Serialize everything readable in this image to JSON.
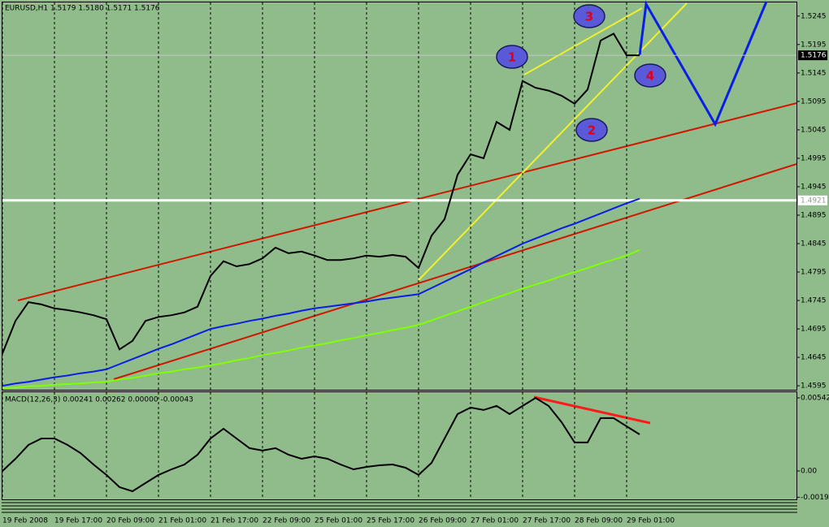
{
  "chart_data": [
    {
      "type": "line",
      "title": "EURUSD,H1  1.5179 1.5180 1.5171 1.5176",
      "categories": [
        "19 Feb 2008",
        null,
        null,
        null,
        "19 Feb 17:00",
        null,
        null,
        null,
        "20 Feb 09:00",
        null,
        null,
        null,
        "21 Feb 01:00",
        null,
        null,
        null,
        "21 Feb 17:00",
        null,
        null,
        null,
        "22 Feb 09:00",
        null,
        null,
        null,
        "25 Feb 01:00",
        null,
        null,
        null,
        "25 Feb 17:00",
        null,
        null,
        null,
        "26 Feb 09:00",
        null,
        null,
        null,
        "27 Feb 01:00",
        null,
        null,
        null,
        "27 Feb 17:00",
        null,
        null,
        null,
        "28 Feb 09:00",
        null,
        null,
        null,
        "29 Feb 01:00",
        null
      ],
      "series": [
        {
          "color": "#000000",
          "values": [
            1.4652,
            1.4709,
            1.4742,
            1.4738,
            1.4731,
            1.4728,
            1.4724,
            1.4719,
            1.4712,
            1.4659,
            1.4674,
            1.4709,
            1.4716,
            1.4719,
            1.4724,
            1.4734,
            1.4788,
            1.4814,
            1.4805,
            1.4809,
            1.4819,
            1.4838,
            1.4828,
            1.4831,
            1.4824,
            1.4816,
            1.4816,
            1.4819,
            1.4824,
            1.4822,
            1.4825,
            1.4822,
            1.4802,
            1.4859,
            1.4888,
            1.4966,
            1.5002,
            1.4995,
            1.5059,
            1.5045,
            1.5131,
            1.5119,
            1.5114,
            1.5105,
            1.5091,
            1.5116,
            1.5202,
            1.5214,
            1.5176,
            1.5176
          ]
        },
        {
          "color": "#0a1ee6",
          "values": [
            1.4595,
            1.4599,
            1.4602,
            1.4606,
            1.461,
            1.4613,
            1.4617,
            1.462,
            1.4624,
            1.4633,
            1.4642,
            1.4651,
            1.466,
            1.4668,
            1.4677,
            1.4686,
            1.4695,
            1.47,
            1.4704,
            1.4709,
            1.4713,
            1.4718,
            1.4722,
            1.4727,
            1.4731,
            1.4734,
            1.4737,
            1.474,
            1.4743,
            1.4747,
            1.475,
            1.4753,
            1.4756,
            1.4767,
            1.4778,
            1.4789,
            1.48,
            1.4812,
            1.4823,
            1.4834,
            1.4845,
            1.4854,
            1.4863,
            1.4872,
            1.488,
            1.4889,
            1.4898,
            1.4907,
            1.4916,
            1.4924
          ]
        },
        {
          "color": "#7fff00",
          "values": [
            1.4591,
            1.4592,
            1.4594,
            1.4595,
            1.4597,
            1.4598,
            1.4599,
            1.4601,
            1.4602,
            1.4606,
            1.4609,
            1.4613,
            1.4617,
            1.462,
            1.4624,
            1.4627,
            1.4631,
            1.4635,
            1.464,
            1.4644,
            1.4649,
            1.4653,
            1.4657,
            1.4662,
            1.4666,
            1.467,
            1.4675,
            1.4679,
            1.4684,
            1.4688,
            1.4693,
            1.4697,
            1.4702,
            1.471,
            1.4718,
            1.4726,
            1.4734,
            1.4742,
            1.475,
            1.4758,
            1.4766,
            1.4773,
            1.478,
            1.4788,
            1.4795,
            1.4802,
            1.481,
            1.4817,
            1.4824,
            1.4834
          ]
        }
      ],
      "ylim": [
        1.4588,
        1.5269
      ],
      "yticks": [
        1.5245,
        1.5195,
        1.5145,
        1.5095,
        1.5045,
        1.4995,
        1.4945,
        1.4895,
        1.4845,
        1.4795,
        1.4745,
        1.4695,
        1.4645,
        1.4595
      ],
      "hlines": [
        1.5176,
        1.4921
      ],
      "annotations": [
        "1",
        "2",
        "3",
        "4"
      ],
      "grid": true
    },
    {
      "type": "line",
      "title": "MACD(12,26,3) 0.00241 0.00262 0.00000 -0.00043",
      "series": [
        {
          "color": "#000000",
          "values": [
            0,
            0.0009,
            0.00193,
            0.00241,
            0.00241,
            0.00193,
            0.00133,
            0.00048,
            -0.0003,
            -0.0012,
            -0.00151,
            -0.0009,
            -0.0003,
            0.00012,
            0.00048,
            0.0012,
            0.00241,
            0.00313,
            0.00241,
            0.00169,
            0.00151,
            0.00169,
            0.0012,
            0.0009,
            0.00108,
            0.0009,
            0.00048,
            0.00012,
            0.0003,
            0.00042,
            0.00048,
            0.00024,
            -0.0003,
            0.0006,
            0.00241,
            0.00422,
            0.0047,
            0.00452,
            0.00482,
            0.00422,
            0.00482,
            0.00542,
            0.00482,
            0.00361,
            0.00211,
            0.00211,
            0.00392,
            0.00392,
            0.00331,
            0.00271
          ]
        }
      ],
      "ylim": [
        -0.00211,
        0.00584
      ],
      "yticks": [
        0.00542,
        {
          "value": 0,
          "label": "0.00"
        },
        -0.00195
      ],
      "grid": true
    }
  ]
}
